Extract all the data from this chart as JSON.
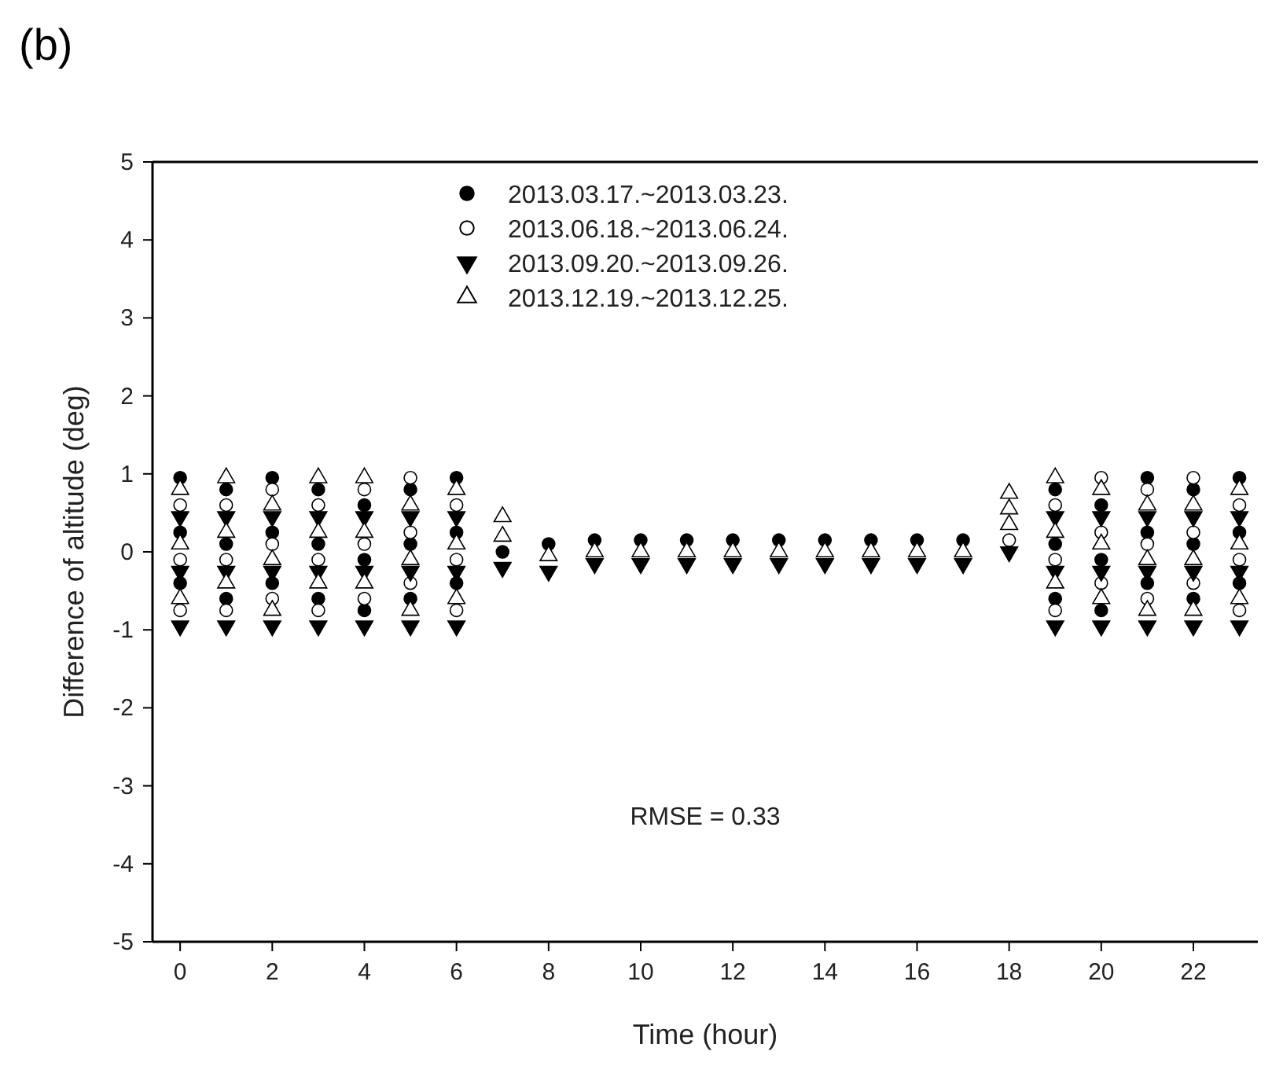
{
  "chart_data": {
    "type": "scatter",
    "title": "(b)",
    "xlabel": "Time (hour)",
    "ylabel": "Difference of altitude (deg)",
    "xlim": [
      -0.6,
      23.4
    ],
    "xticks": [
      0,
      2,
      4,
      6,
      8,
      10,
      12,
      14,
      16,
      18,
      20,
      22
    ],
    "ylim": [
      -5,
      5
    ],
    "yticks": [
      -5,
      -4,
      -3,
      -2,
      -1,
      0,
      1,
      2,
      3,
      4,
      5
    ],
    "grid": false,
    "legend": "top",
    "annotations": [
      "RMSE = 0.33"
    ],
    "series": [
      {
        "name": "2013.03.17.~2013.03.23.",
        "color": "#000000",
        "marker": "circle",
        "x": [
          0,
          0,
          0,
          1,
          1,
          1,
          2,
          2,
          2,
          3,
          3,
          3,
          4,
          4,
          4,
          5,
          5,
          5,
          6,
          6,
          6,
          7,
          8,
          9,
          10,
          11,
          12,
          13,
          14,
          15,
          16,
          17,
          19,
          19,
          19,
          20,
          20,
          20,
          21,
          21,
          21,
          22,
          22,
          22,
          23,
          23,
          23
        ],
        "values": [
          0.95,
          0.25,
          -0.4,
          0.8,
          0.1,
          -0.6,
          0.95,
          0.25,
          -0.4,
          0.8,
          0.1,
          -0.6,
          0.6,
          -0.1,
          -0.75,
          0.8,
          0.1,
          -0.6,
          0.95,
          0.25,
          -0.4,
          0,
          0.1,
          0.15,
          0.15,
          0.15,
          0.15,
          0.15,
          0.15,
          0.15,
          0.15,
          0.15,
          0.8,
          0.1,
          -0.6,
          0.6,
          -0.1,
          -0.75,
          0.95,
          0.25,
          -0.4,
          0.8,
          0.1,
          -0.6,
          0.95,
          0.25,
          -0.4
        ]
      },
      {
        "name": "2013.06.18.~2013.06.24.",
        "color": "#ffffff",
        "marker": "circle",
        "x": [
          0,
          0,
          0,
          1,
          1,
          1,
          2,
          2,
          2,
          3,
          3,
          3,
          4,
          4,
          4,
          5,
          5,
          5,
          6,
          6,
          6,
          18,
          19,
          19,
          19,
          20,
          20,
          20,
          21,
          21,
          21,
          22,
          22,
          22,
          23,
          23,
          23
        ],
        "values": [
          0.6,
          -0.1,
          -0.75,
          0.6,
          -0.1,
          -0.75,
          0.8,
          0.1,
          -0.6,
          0.6,
          -0.1,
          -0.75,
          0.8,
          0.1,
          -0.6,
          0.95,
          0.25,
          -0.4,
          0.6,
          -0.1,
          -0.75,
          0.15,
          0.6,
          -0.1,
          -0.75,
          0.95,
          0.25,
          -0.4,
          0.8,
          0.1,
          -0.6,
          0.95,
          0.25,
          -0.4,
          0.6,
          -0.1,
          -0.75
        ]
      },
      {
        "name": "2013.09.20.~2013.09.26.",
        "color": "#000000",
        "marker": "triangle-down",
        "x": [
          0,
          0,
          0,
          1,
          1,
          1,
          2,
          2,
          2,
          3,
          3,
          3,
          4,
          4,
          4,
          5,
          5,
          5,
          6,
          6,
          6,
          7,
          8,
          9,
          10,
          11,
          12,
          13,
          14,
          15,
          16,
          17,
          18,
          19,
          19,
          19,
          20,
          20,
          20,
          21,
          21,
          21,
          22,
          22,
          22,
          23,
          23,
          23
        ],
        "values": [
          0.45,
          -0.25,
          -0.95,
          0.45,
          -0.25,
          -0.95,
          0.45,
          -0.25,
          -0.95,
          0.45,
          -0.25,
          -0.95,
          0.45,
          -0.25,
          -0.95,
          0.45,
          -0.25,
          -0.95,
          0.45,
          -0.25,
          -0.95,
          -0.2,
          -0.25,
          -0.15,
          -0.15,
          -0.15,
          -0.15,
          -0.15,
          -0.15,
          -0.15,
          -0.15,
          -0.15,
          0,
          0.45,
          -0.25,
          -0.95,
          0.45,
          -0.25,
          -0.95,
          0.45,
          -0.25,
          -0.95,
          0.45,
          -0.25,
          -0.95,
          0.45,
          -0.25,
          -0.95
        ]
      },
      {
        "name": "2013.12.19.~2013.12.25.",
        "color": "#ffffff",
        "marker": "triangle",
        "x": [
          0,
          0,
          0,
          1,
          1,
          1,
          2,
          2,
          2,
          3,
          3,
          3,
          4,
          4,
          4,
          5,
          5,
          5,
          6,
          6,
          6,
          7,
          7,
          8,
          9,
          10,
          11,
          12,
          13,
          14,
          15,
          16,
          17,
          18,
          18,
          18,
          19,
          19,
          19,
          20,
          20,
          20,
          21,
          21,
          21,
          22,
          22,
          22,
          23,
          23,
          23
        ],
        "values": [
          0.8,
          0.1,
          -0.6,
          0.95,
          0.25,
          -0.4,
          0.6,
          -0.1,
          -0.75,
          0.95,
          0.25,
          -0.4,
          0.95,
          0.25,
          -0.4,
          0.6,
          -0.1,
          -0.75,
          0.8,
          0.1,
          -0.6,
          0.45,
          0.2,
          -0.05,
          0,
          0,
          0,
          0,
          0,
          0,
          0,
          0,
          0,
          0.75,
          0.55,
          0.35,
          0.95,
          0.25,
          -0.4,
          0.8,
          0.1,
          -0.6,
          0.6,
          -0.1,
          -0.75,
          0.6,
          -0.1,
          -0.75,
          0.8,
          0.1,
          -0.6
        ]
      }
    ]
  }
}
